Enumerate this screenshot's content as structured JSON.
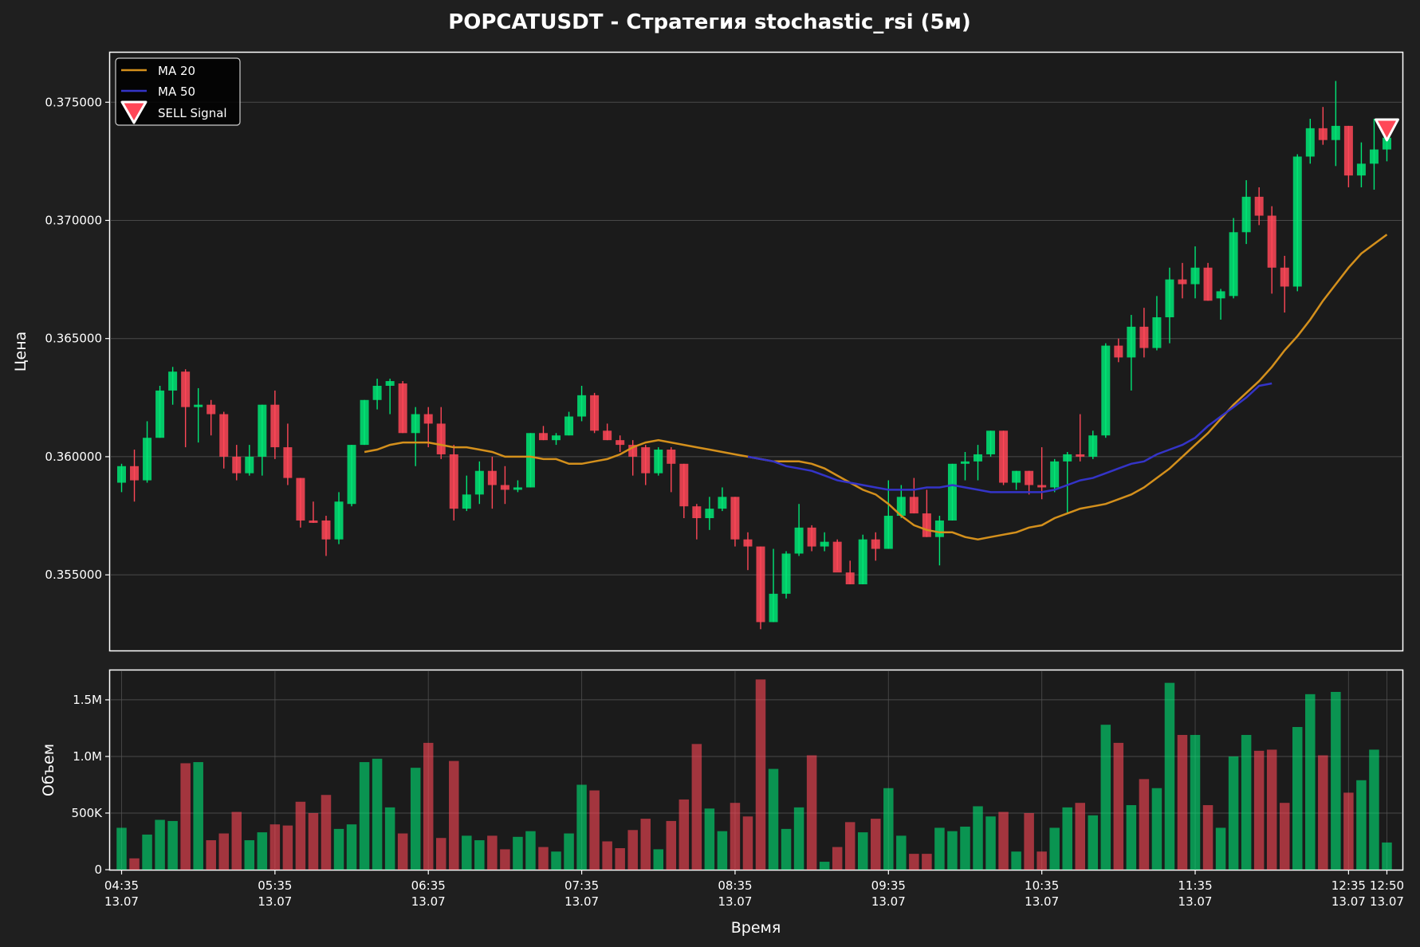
{
  "title": "POPCATUSDT - Стратегия stochastic_rsi (5м)",
  "colors": {
    "background": "#1f1f1f",
    "up": "#00e676",
    "down": "#ff4757",
    "ma20": "#d4901c",
    "ma50": "#3434c8",
    "grid": "#555555",
    "text": "#ffffff"
  },
  "chart_data": [
    {
      "type": "candlestick",
      "ylabel": "Цена",
      "ylim": [
        0.3518,
        0.3771
      ],
      "yticks": [
        {
          "value": 0.355,
          "label": "0.355000"
        },
        {
          "value": 0.36,
          "label": "0.360000"
        },
        {
          "value": 0.365,
          "label": "0.365000"
        },
        {
          "value": 0.37,
          "label": "0.370000"
        },
        {
          "value": 0.375,
          "label": "0.375000"
        }
      ],
      "grid": true,
      "legend_position": "top-left",
      "legend": [
        "MA 20",
        "MA 50",
        "SELL Signal"
      ],
      "ohlc": [
        [
          0.3589,
          0.3597,
          0.3585,
          0.3596
        ],
        [
          0.3596,
          0.3603,
          0.3581,
          0.359
        ],
        [
          0.359,
          0.3615,
          0.3589,
          0.3608
        ],
        [
          0.3608,
          0.363,
          0.3608,
          0.3628
        ],
        [
          0.3628,
          0.3638,
          0.3622,
          0.3636
        ],
        [
          0.3636,
          0.3637,
          0.3604,
          0.3621
        ],
        [
          0.3621,
          0.3629,
          0.3606,
          0.3622
        ],
        [
          0.3622,
          0.3624,
          0.3609,
          0.3618
        ],
        [
          0.3618,
          0.3619,
          0.3595,
          0.36
        ],
        [
          0.36,
          0.3605,
          0.359,
          0.3593
        ],
        [
          0.3593,
          0.3605,
          0.3592,
          0.36
        ],
        [
          0.36,
          0.3622,
          0.3592,
          0.3622
        ],
        [
          0.3622,
          0.3628,
          0.3599,
          0.3604
        ],
        [
          0.3604,
          0.3614,
          0.3588,
          0.3591
        ],
        [
          0.3591,
          0.3591,
          0.357,
          0.3573
        ],
        [
          0.3573,
          0.3581,
          0.3572,
          0.3572
        ],
        [
          0.3573,
          0.3575,
          0.3558,
          0.3565
        ],
        [
          0.3565,
          0.3585,
          0.3563,
          0.3581
        ],
        [
          0.358,
          0.3605,
          0.3579,
          0.3605
        ],
        [
          0.3605,
          0.3624,
          0.3605,
          0.3624
        ],
        [
          0.3624,
          0.3633,
          0.362,
          0.363
        ],
        [
          0.363,
          0.3633,
          0.3618,
          0.3632
        ],
        [
          0.3631,
          0.3632,
          0.361,
          0.361
        ],
        [
          0.361,
          0.3621,
          0.3596,
          0.3618
        ],
        [
          0.3618,
          0.3621,
          0.3604,
          0.3614
        ],
        [
          0.3614,
          0.3621,
          0.3599,
          0.3601
        ],
        [
          0.3601,
          0.3605,
          0.3573,
          0.3578
        ],
        [
          0.3578,
          0.3592,
          0.3577,
          0.3584
        ],
        [
          0.3584,
          0.3598,
          0.358,
          0.3594
        ],
        [
          0.3594,
          0.36,
          0.3578,
          0.3588
        ],
        [
          0.3588,
          0.3596,
          0.358,
          0.3586
        ],
        [
          0.3586,
          0.359,
          0.3585,
          0.3587
        ],
        [
          0.3587,
          0.361,
          0.3587,
          0.361
        ],
        [
          0.361,
          0.3613,
          0.3607,
          0.3607
        ],
        [
          0.3607,
          0.361,
          0.3605,
          0.3609
        ],
        [
          0.3609,
          0.3619,
          0.3609,
          0.3617
        ],
        [
          0.3617,
          0.363,
          0.3615,
          0.3626
        ],
        [
          0.3626,
          0.3627,
          0.361,
          0.3611
        ],
        [
          0.3611,
          0.3614,
          0.3607,
          0.3607
        ],
        [
          0.3607,
          0.3609,
          0.3602,
          0.3605
        ],
        [
          0.3605,
          0.3607,
          0.3592,
          0.36
        ],
        [
          0.3604,
          0.3605,
          0.3588,
          0.3593
        ],
        [
          0.3593,
          0.3604,
          0.3592,
          0.3603
        ],
        [
          0.3603,
          0.3604,
          0.3585,
          0.3597
        ],
        [
          0.3597,
          0.3597,
          0.3574,
          0.3579
        ],
        [
          0.3579,
          0.358,
          0.3565,
          0.3574
        ],
        [
          0.3574,
          0.3583,
          0.3569,
          0.3578
        ],
        [
          0.3578,
          0.3587,
          0.3577,
          0.3583
        ],
        [
          0.3583,
          0.3583,
          0.3562,
          0.3565
        ],
        [
          0.3565,
          0.3568,
          0.3552,
          0.3562
        ],
        [
          0.3562,
          0.3562,
          0.3527,
          0.353
        ],
        [
          0.353,
          0.3561,
          0.353,
          0.3542
        ],
        [
          0.3542,
          0.356,
          0.354,
          0.3559
        ],
        [
          0.3559,
          0.358,
          0.3558,
          0.357
        ],
        [
          0.357,
          0.3571,
          0.356,
          0.3562
        ],
        [
          0.3562,
          0.3568,
          0.356,
          0.3564
        ],
        [
          0.3564,
          0.3565,
          0.3552,
          0.3551
        ],
        [
          0.3551,
          0.3556,
          0.3546,
          0.3546
        ],
        [
          0.3546,
          0.3567,
          0.3546,
          0.3565
        ],
        [
          0.3565,
          0.3568,
          0.3556,
          0.3561
        ],
        [
          0.3561,
          0.359,
          0.3561,
          0.3575
        ],
        [
          0.3575,
          0.3588,
          0.3574,
          0.3583
        ],
        [
          0.3583,
          0.3591,
          0.3576,
          0.3576
        ],
        [
          0.3576,
          0.3586,
          0.3566,
          0.3566
        ],
        [
          0.3566,
          0.3575,
          0.3554,
          0.3573
        ],
        [
          0.3573,
          0.3597,
          0.3573,
          0.3597
        ],
        [
          0.3597,
          0.3602,
          0.359,
          0.3598
        ],
        [
          0.3598,
          0.3605,
          0.359,
          0.3601
        ],
        [
          0.3601,
          0.3611,
          0.36,
          0.3611
        ],
        [
          0.3611,
          0.3611,
          0.3588,
          0.3589
        ],
        [
          0.3589,
          0.3594,
          0.3586,
          0.3594
        ],
        [
          0.3594,
          0.3594,
          0.3584,
          0.3588
        ],
        [
          0.3588,
          0.3604,
          0.3582,
          0.3587
        ],
        [
          0.3587,
          0.3599,
          0.3585,
          0.3598
        ],
        [
          0.3598,
          0.3602,
          0.3576,
          0.3601
        ],
        [
          0.3601,
          0.3618,
          0.3598,
          0.36
        ],
        [
          0.36,
          0.3611,
          0.3599,
          0.3609
        ],
        [
          0.3609,
          0.3648,
          0.3608,
          0.3647
        ],
        [
          0.3647,
          0.365,
          0.364,
          0.3642
        ],
        [
          0.3642,
          0.366,
          0.3628,
          0.3655
        ],
        [
          0.3655,
          0.3663,
          0.3642,
          0.3646
        ],
        [
          0.3646,
          0.3668,
          0.3645,
          0.3659
        ],
        [
          0.3659,
          0.368,
          0.3648,
          0.3675
        ],
        [
          0.3675,
          0.3682,
          0.3667,
          0.3673
        ],
        [
          0.3673,
          0.3689,
          0.3667,
          0.368
        ],
        [
          0.368,
          0.3682,
          0.3666,
          0.3666
        ],
        [
          0.3667,
          0.3671,
          0.3658,
          0.367
        ],
        [
          0.3668,
          0.3701,
          0.3667,
          0.3695
        ],
        [
          0.3695,
          0.3717,
          0.369,
          0.371
        ],
        [
          0.371,
          0.3714,
          0.3698,
          0.3702
        ],
        [
          0.3702,
          0.3706,
          0.3669,
          0.368
        ],
        [
          0.368,
          0.3685,
          0.3661,
          0.3672
        ],
        [
          0.3672,
          0.3728,
          0.367,
          0.3727
        ],
        [
          0.3727,
          0.3743,
          0.3724,
          0.3739
        ],
        [
          0.3739,
          0.3748,
          0.3732,
          0.3734
        ],
        [
          0.3734,
          0.3759,
          0.3723,
          0.374
        ],
        [
          0.374,
          0.374,
          0.3714,
          0.3719
        ],
        [
          0.3719,
          0.3733,
          0.3714,
          0.3724
        ],
        [
          0.3724,
          0.3743,
          0.3713,
          0.373
        ],
        [
          0.373,
          0.3742,
          0.3725,
          0.3735
        ]
      ],
      "volumes": [
        370000,
        100000,
        310000,
        440000,
        430000,
        940000,
        950000,
        260000,
        320000,
        510000,
        260000,
        330000,
        400000,
        390000,
        600000,
        500000,
        660000,
        360000,
        400000,
        950000,
        980000,
        550000,
        320000,
        900000,
        1120000,
        280000,
        960000,
        300000,
        260000,
        300000,
        180000,
        290000,
        340000,
        200000,
        160000,
        320000,
        750000,
        700000,
        250000,
        190000,
        350000,
        450000,
        180000,
        430000,
        620000,
        1110000,
        540000,
        340000,
        590000,
        470000,
        1680000,
        890000,
        360000,
        550000,
        1010000,
        70000,
        200000,
        420000,
        330000,
        450000,
        720000,
        300000,
        140000,
        140000,
        370000,
        340000,
        380000,
        560000,
        470000,
        510000,
        160000,
        500000,
        160000,
        370000,
        550000,
        590000,
        480000,
        1280000,
        1120000,
        570000,
        800000,
        720000,
        1650000,
        1190000,
        1190000,
        570000,
        370000,
        1000000,
        1190000,
        1050000,
        1060000,
        590000,
        1260000,
        1550000,
        1010000,
        1570000,
        680000,
        790000,
        1060000,
        240000
      ],
      "ma20_start_index": 19,
      "ma20": [
        0.3602,
        0.3603,
        0.3605,
        0.3606,
        0.3606,
        0.3606,
        0.3605,
        0.3604,
        0.3604,
        0.3603,
        0.3602,
        0.36,
        0.36,
        0.36,
        0.3599,
        0.3599,
        0.3597,
        0.3597,
        0.3598,
        0.3599,
        0.3601,
        0.3604,
        0.3606,
        0.3607,
        0.3606,
        0.3605,
        0.3604,
        0.3603,
        0.3602,
        0.3601,
        0.36,
        0.3599,
        0.3598,
        0.3598,
        0.3598,
        0.3597,
        0.3595,
        0.3592,
        0.3589,
        0.3586,
        0.3584,
        0.358,
        0.3575,
        0.3571,
        0.3569,
        0.3568,
        0.3568,
        0.3566,
        0.3565,
        0.3566,
        0.3567,
        0.3568,
        0.357,
        0.3571,
        0.3574,
        0.3576,
        0.3578,
        0.3579,
        0.358,
        0.3582,
        0.3584,
        0.3587,
        0.3591,
        0.3595,
        0.36,
        0.3605,
        0.361,
        0.3616,
        0.3622,
        0.3627,
        0.3632,
        0.3638,
        0.3645,
        0.3651,
        0.3658,
        0.3666,
        0.3673,
        0.368,
        0.3686,
        0.369,
        0.3694
      ],
      "ma50_start_index": 49,
      "ma50": [
        0.36,
        0.3599,
        0.3598,
        0.3596,
        0.3595,
        0.3594,
        0.3592,
        0.359,
        0.3589,
        0.3588,
        0.3587,
        0.3586,
        0.3586,
        0.3586,
        0.3587,
        0.3587,
        0.3588,
        0.3587,
        0.3586,
        0.3585,
        0.3585,
        0.3585,
        0.3585,
        0.3585,
        0.3586,
        0.3588,
        0.359,
        0.3591,
        0.3593,
        0.3595,
        0.3597,
        0.3598,
        0.3601,
        0.3603,
        0.3605,
        0.3608,
        0.3613,
        0.3617,
        0.3621,
        0.3625,
        0.363,
        0.3631
      ],
      "sell_signal_indices": [
        99
      ]
    },
    {
      "type": "bar",
      "ylabel": "Объем",
      "xlabel": "Время",
      "ylim": [
        0,
        1760000
      ],
      "yticks": [
        {
          "value": 0,
          "label": "0"
        },
        {
          "value": 500000,
          "label": "500K"
        },
        {
          "value": 1000000,
          "label": "1.0M"
        },
        {
          "value": 1500000,
          "label": "1.5M"
        }
      ],
      "xticks": [
        {
          "index": 0,
          "time": "04:35",
          "date": "13.07"
        },
        {
          "index": 12,
          "time": "05:35",
          "date": "13.07"
        },
        {
          "index": 24,
          "time": "06:35",
          "date": "13.07"
        },
        {
          "index": 36,
          "time": "07:35",
          "date": "13.07"
        },
        {
          "index": 48,
          "time": "08:35",
          "date": "13.07"
        },
        {
          "index": 60,
          "time": "09:35",
          "date": "13.07"
        },
        {
          "index": 72,
          "time": "10:35",
          "date": "13.07"
        },
        {
          "index": 84,
          "time": "11:35",
          "date": "13.07"
        },
        {
          "index": 96,
          "time": "12:35",
          "date": "13.07"
        },
        {
          "index": 99,
          "time": "12:50",
          "date": "13.07"
        }
      ],
      "grid": true
    }
  ]
}
